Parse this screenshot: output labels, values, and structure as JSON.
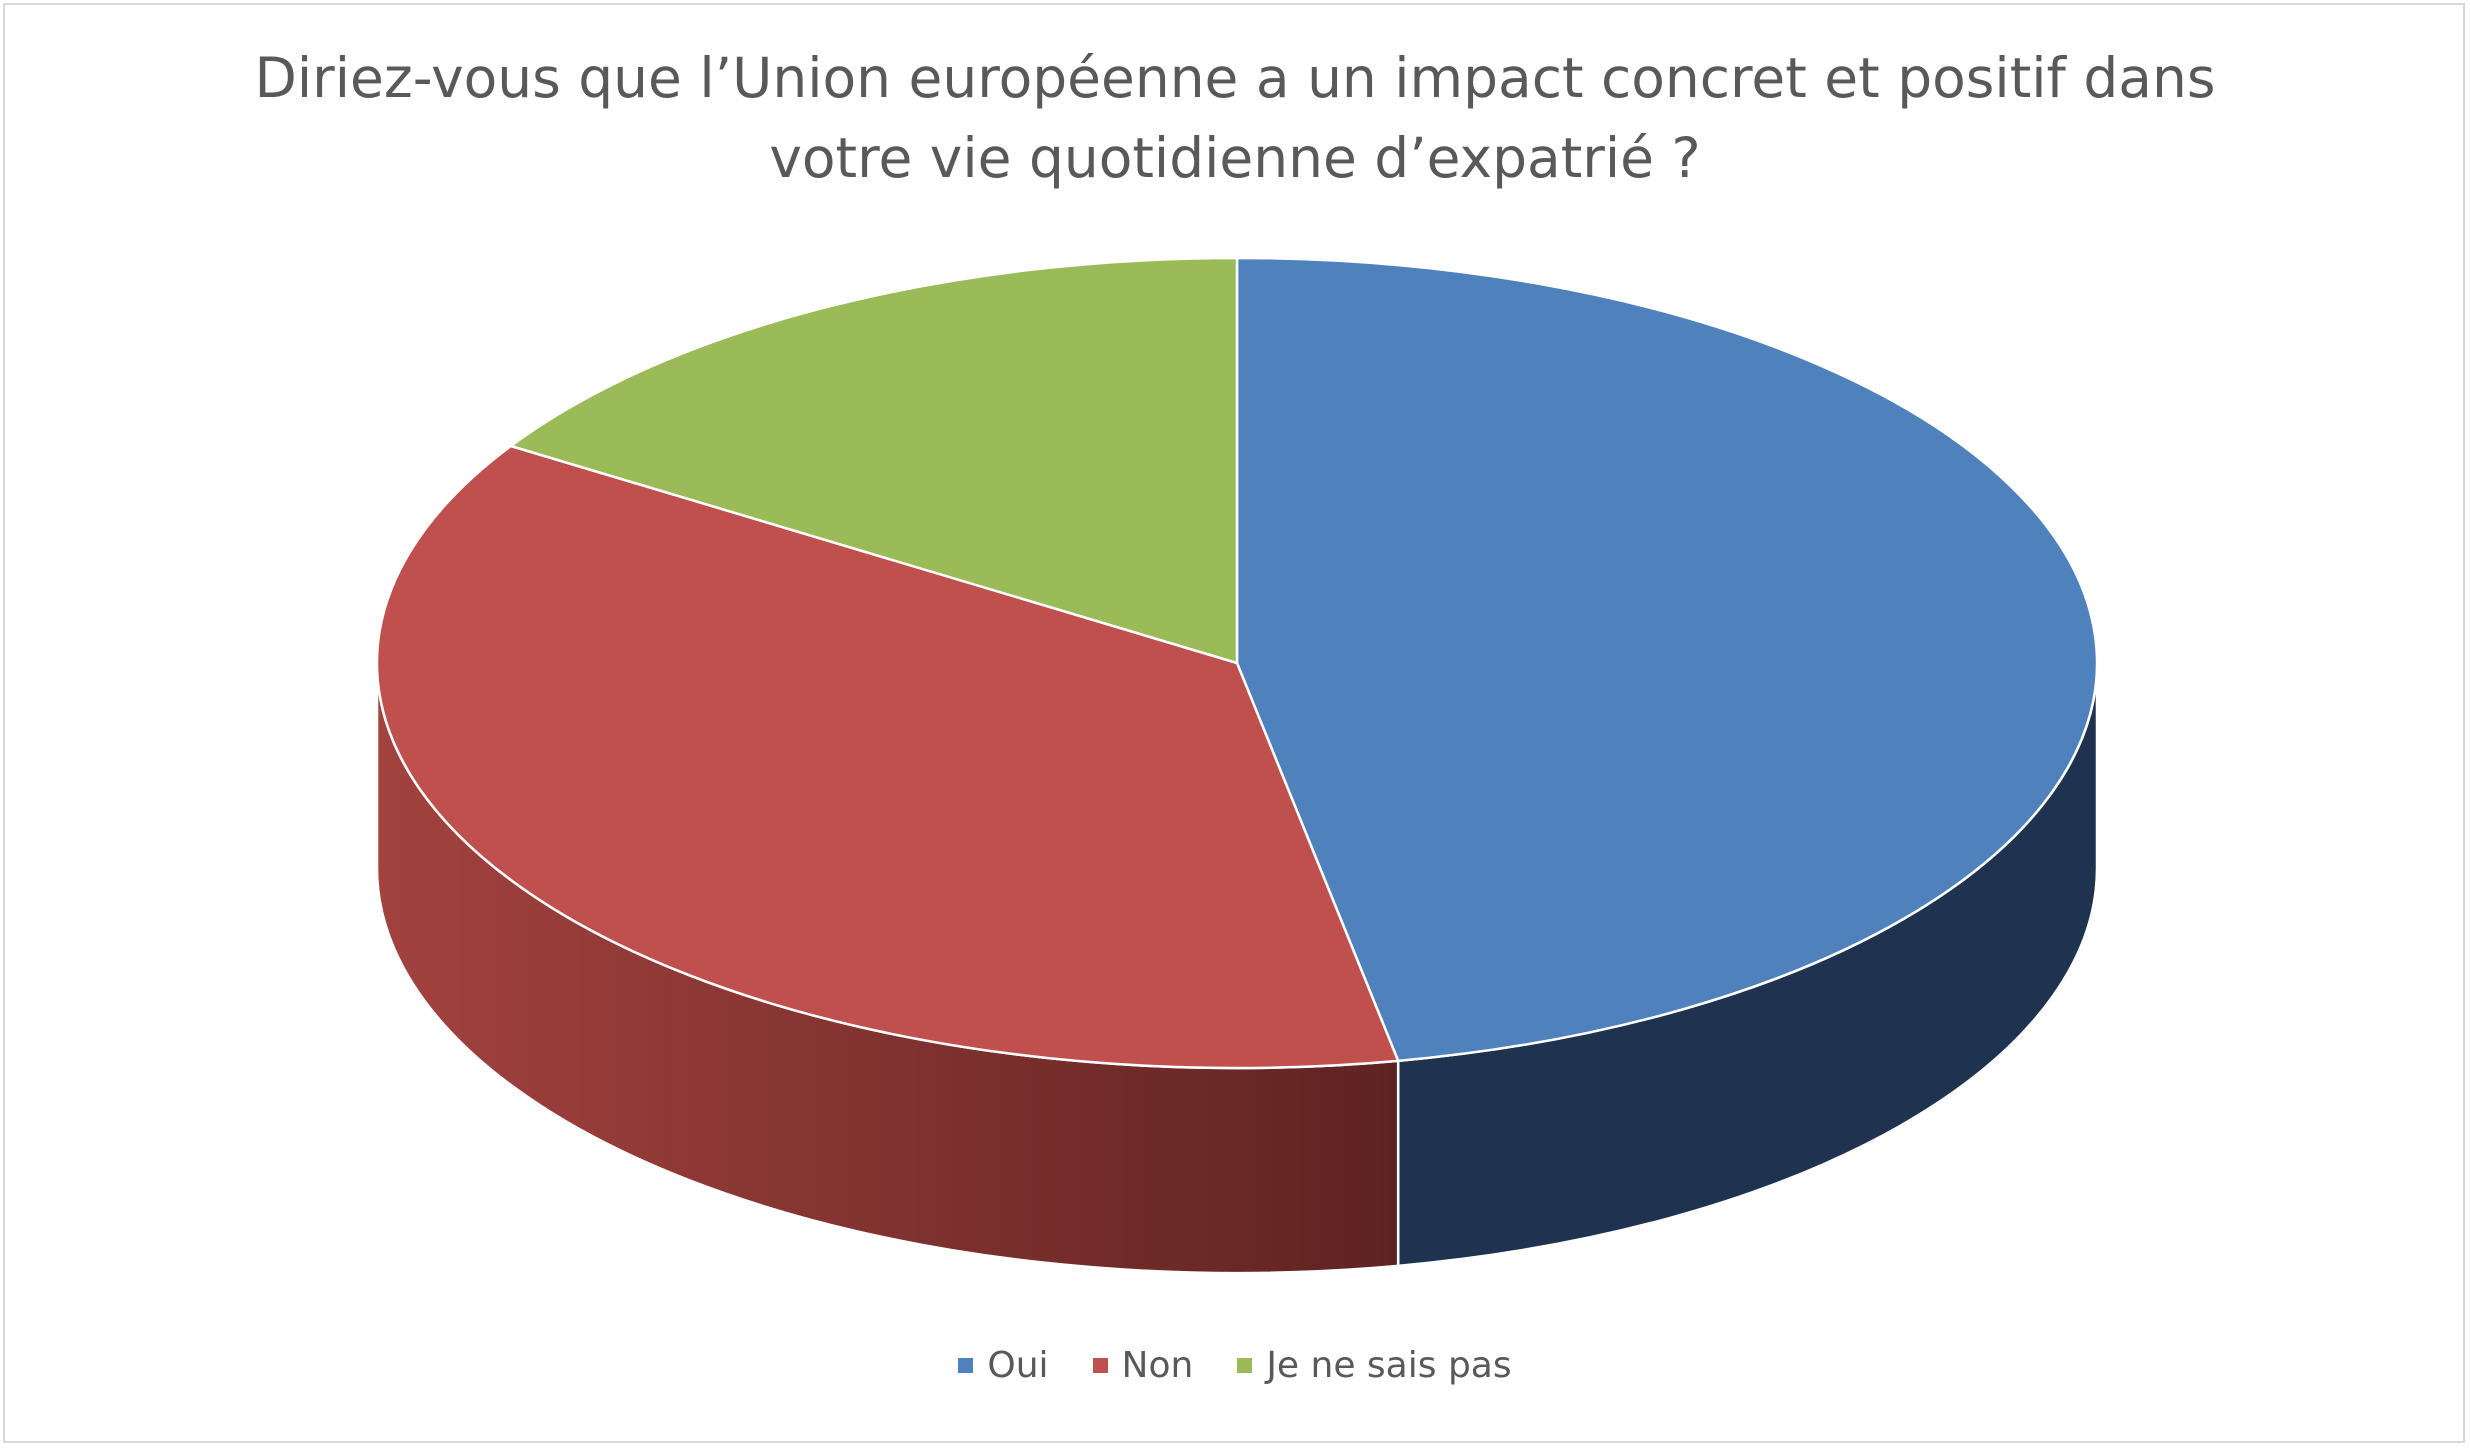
{
  "chart_data": {
    "type": "pie",
    "style": "3d",
    "title_lines": [
      "Diriez-vous que l’Union européenne a un impact concret et positif dans",
      "votre vie quotidienne d’expatrié ?"
    ],
    "categories": [
      "Oui",
      "Non",
      "Je ne sais pas"
    ],
    "values": [
      47,
      37,
      16
    ],
    "colors": [
      "#4F81BD",
      "#C0504D",
      "#9BBB59"
    ],
    "side_colors": [
      "#1F3350",
      "#8E3936",
      "#6E8A3F"
    ],
    "legend_position": "bottom"
  }
}
